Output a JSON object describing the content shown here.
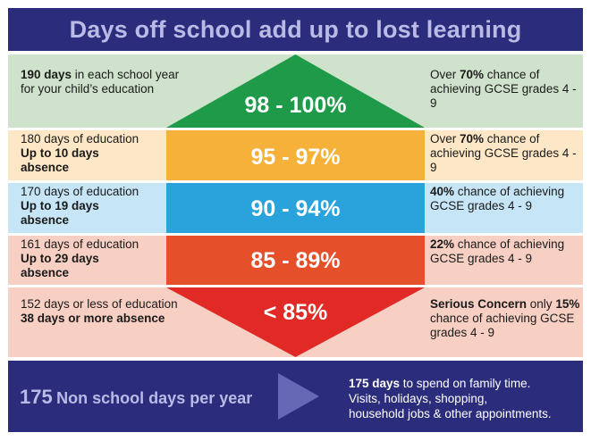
{
  "title": "Days off school add up to lost learning",
  "colors": {
    "navy": "#2b2c7c",
    "green": "#1f9a49",
    "orange": "#f6b13a",
    "blue": "#2aa3dd",
    "red_orange": "#e5502a",
    "red": "#e12a26"
  },
  "rows": [
    {
      "range": "98 - 100%",
      "left": [
        {
          "b": "190 days",
          "t": " in each school year for your child’s education"
        }
      ],
      "right": [
        {
          "t": "Over "
        },
        {
          "b": "70%"
        },
        {
          "t": " chance of achieving GCSE grades 4 - 9"
        }
      ]
    },
    {
      "range": "95 - 97%",
      "left": [
        {
          "t": "180 days of education"
        },
        {
          "b": "Up to 10 days absence"
        }
      ],
      "right": [
        {
          "t": "Over "
        },
        {
          "b": "70%"
        },
        {
          "t": " chance of achieving GCSE grades 4 - 9"
        }
      ]
    },
    {
      "range": "90 - 94%",
      "left": [
        {
          "t": "170 days of education"
        },
        {
          "b": "Up to 19 days absence"
        }
      ],
      "right": [
        {
          "b": "40%"
        },
        {
          "t": " chance of achieving GCSE grades 4 - 9"
        }
      ]
    },
    {
      "range": "85 - 89%",
      "left": [
        {
          "t": "161 days of education"
        },
        {
          "b": "Up to 29 days absence"
        }
      ],
      "right": [
        {
          "b": "22%"
        },
        {
          "t": " chance of achieving GCSE grades 4 - 9"
        }
      ]
    },
    {
      "range": "< 85%",
      "left": [
        {
          "t": "152 days or less of education"
        },
        {
          "b": "38 days or more absence"
        }
      ],
      "right": [
        {
          "b": "Serious Concern"
        },
        {
          "t": " only "
        },
        {
          "b": "15%"
        },
        {
          "t": " chance of achieving GCSE grades 4 - 9"
        }
      ]
    }
  ],
  "footer": {
    "big_number": "175",
    "big_text": "Non school days per year",
    "right_bold": "175 days",
    "right_text1": " to spend on family time.",
    "right_text2": "Visits, holidays, shopping,",
    "right_text3": "household jobs & other appointments."
  }
}
